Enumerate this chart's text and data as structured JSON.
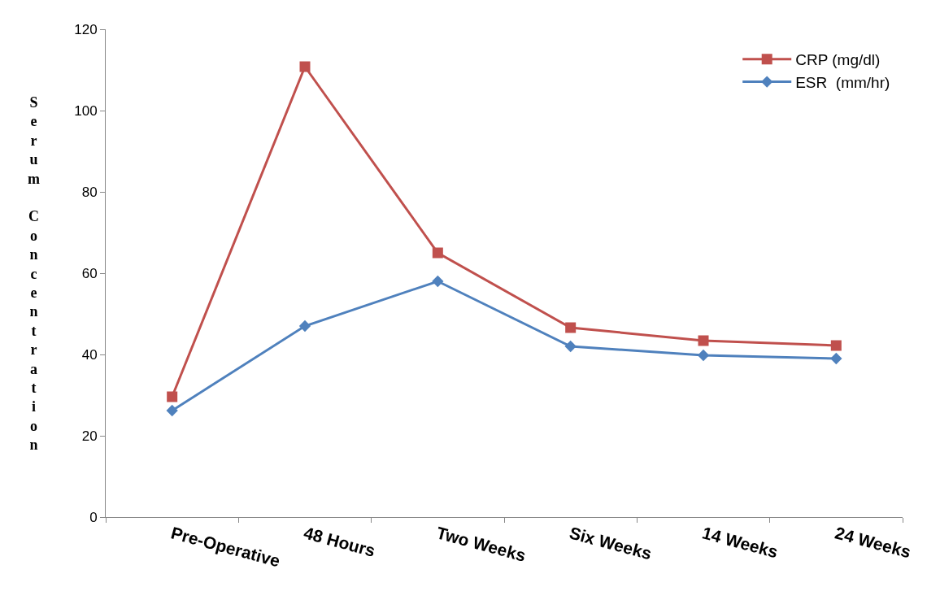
{
  "chart_data": {
    "type": "line",
    "ylabel": "Serum Concentration",
    "categories": [
      "Pre-Operative",
      "48 Hours",
      "Two Weeks",
      "Six Weeks",
      "14 Weeks",
      "24 Weeks"
    ],
    "series": [
      {
        "name": "CRP (mg/dl)",
        "color": "#c0504d",
        "marker": "square",
        "values": [
          29.6,
          110.8,
          65,
          46.6,
          43.4,
          42.2
        ]
      },
      {
        "name": "ESR  (mm/hr)",
        "color": "#4f81bd",
        "marker": "diamond",
        "values": [
          26.2,
          47,
          58,
          42,
          39.8,
          39
        ]
      }
    ],
    "ylim": [
      0,
      120
    ],
    "yticks": [
      0,
      20,
      40,
      60,
      80,
      100,
      120
    ],
    "legend": "top right",
    "line_style": "solid"
  }
}
